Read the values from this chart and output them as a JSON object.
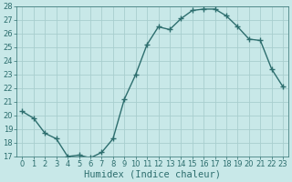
{
  "x": [
    0,
    1,
    2,
    3,
    4,
    5,
    6,
    7,
    8,
    9,
    10,
    11,
    12,
    13,
    14,
    15,
    16,
    17,
    18,
    19,
    20,
    21,
    22,
    23
  ],
  "y": [
    20.3,
    19.8,
    18.7,
    18.3,
    17.0,
    17.1,
    16.9,
    17.3,
    18.3,
    21.2,
    23.0,
    25.2,
    26.5,
    26.3,
    27.1,
    27.7,
    27.8,
    27.8,
    27.3,
    26.5,
    25.6,
    25.5,
    23.4,
    22.1
  ],
  "line_color": "#2d6e6e",
  "marker": "+",
  "marker_size": 4,
  "bg_color": "#c8e8e8",
  "grid_color": "#a8cece",
  "xlabel": "Humidex (Indice chaleur)",
  "ylim": [
    17,
    28
  ],
  "xlim": [
    -0.5,
    23.5
  ],
  "yticks": [
    17,
    18,
    19,
    20,
    21,
    22,
    23,
    24,
    25,
    26,
    27,
    28
  ],
  "xticks": [
    0,
    1,
    2,
    3,
    4,
    5,
    6,
    7,
    8,
    9,
    10,
    11,
    12,
    13,
    14,
    15,
    16,
    17,
    18,
    19,
    20,
    21,
    22,
    23
  ],
  "tick_color": "#2d6e6e",
  "label_color": "#2d6e6e",
  "font_size": 6.0,
  "xlabel_fontsize": 7.5,
  "linewidth": 1.0,
  "marker_linewidth": 1.0
}
